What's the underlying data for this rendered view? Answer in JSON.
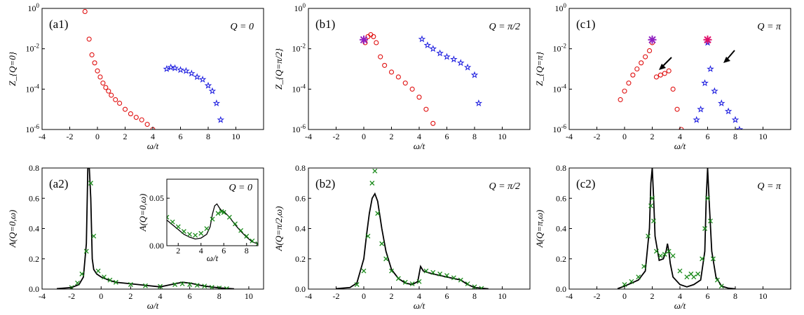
{
  "figure": {
    "panels": [
      {
        "id": "a1",
        "type": "scatter",
        "label": "(a1)",
        "q_label": "Q = 0",
        "ylabel": "Z_{Q=0}",
        "xlabel": "ω/t",
        "yscale": "log",
        "xlim": [
          -4,
          12
        ],
        "ylim": [
          1e-06,
          1
        ],
        "xticks": [
          -4,
          -2,
          0,
          2,
          4,
          6,
          8,
          10
        ],
        "yticks": [
          "10^-6",
          "10^-4",
          "10^-2",
          "10^0"
        ],
        "series": [
          {
            "marker": "circle",
            "color": "#e01010",
            "x": [
              -0.9,
              -0.6,
              -0.4,
              -0.2,
              0.0,
              0.2,
              0.4,
              0.6,
              0.8,
              1.0,
              1.3,
              1.6,
              2.0,
              2.4,
              2.8,
              3.2,
              3.6,
              4.0
            ],
            "y": [
              0.7,
              0.03,
              0.005,
              0.002,
              0.0008,
              0.0004,
              0.0002,
              0.00012,
              8e-05,
              5e-05,
              3e-05,
              2e-05,
              1e-05,
              6e-06,
              4e-06,
              3e-06,
              1.8e-06,
              1e-06
            ]
          },
          {
            "marker": "star",
            "color": "#1a1adf",
            "x": [
              5.0,
              5.3,
              5.6,
              6.0,
              6.4,
              6.8,
              7.2,
              7.6,
              8.0,
              8.3,
              8.6,
              8.9
            ],
            "y": [
              0.001,
              0.0012,
              0.0011,
              0.0009,
              0.0008,
              0.0006,
              0.0004,
              0.0003,
              0.00015,
              8e-05,
              2e-05,
              3e-06
            ]
          }
        ]
      },
      {
        "id": "b1",
        "type": "scatter",
        "label": "(b1)",
        "q_label": "Q = π/2",
        "ylabel": "Z_{Q=π/2}",
        "xlabel": "ω/t",
        "yscale": "log",
        "xlim": [
          -4,
          12
        ],
        "ylim": [
          1e-06,
          1
        ],
        "xticks": [
          -4,
          -2,
          0,
          2,
          4,
          6,
          8,
          10
        ],
        "yticks": [
          "10^-6",
          "10^-4",
          "10^-2",
          "10^0"
        ],
        "series": [
          {
            "marker": "circle",
            "color": "#e01010",
            "x": [
              0.1,
              0.3,
              0.5,
              0.7,
              0.9,
              1.2,
              1.5,
              2.0,
              2.5,
              3.0,
              3.5,
              4.0,
              4.5,
              5.0
            ],
            "y": [
              0.02,
              0.04,
              0.05,
              0.04,
              0.02,
              0.004,
              0.0015,
              0.0007,
              0.0004,
              0.0002,
              0.0001,
              4e-05,
              1e-05,
              2e-06
            ]
          },
          {
            "marker": "star",
            "color": "#1a1adf",
            "x": [
              4.2,
              4.6,
              5.0,
              5.5,
              6.0,
              6.5,
              7.0,
              7.5,
              8.0,
              8.3
            ],
            "y": [
              0.03,
              0.015,
              0.01,
              0.006,
              0.004,
              0.003,
              0.002,
              0.0012,
              0.0005,
              2e-05
            ]
          },
          {
            "marker": "asterisk",
            "color": "#9020c0",
            "x": [
              0.0
            ],
            "y": [
              0.028
            ]
          }
        ]
      },
      {
        "id": "c1",
        "type": "scatter",
        "label": "(c1)",
        "q_label": "Q = π",
        "ylabel": "Z_{Q=π}",
        "xlabel": "ω/t",
        "yscale": "log",
        "xlim": [
          -4,
          12
        ],
        "ylim": [
          1e-06,
          1
        ],
        "xticks": [
          -4,
          -2,
          0,
          2,
          4,
          6,
          8,
          10
        ],
        "yticks": [
          "10^-6",
          "10^-4",
          "10^-2",
          "10^0"
        ],
        "series": [
          {
            "marker": "circle",
            "color": "#e01010",
            "x": [
              -0.3,
              0.0,
              0.3,
              0.6,
              0.9,
              1.2,
              1.5,
              1.8,
              2.0,
              2.3,
              2.6,
              2.9,
              3.2,
              3.5,
              3.8,
              4.1
            ],
            "y": [
              3e-05,
              8e-05,
              0.0002,
              0.0005,
              0.001,
              0.002,
              0.004,
              0.008,
              0.02,
              0.0004,
              0.0005,
              0.0006,
              0.0008,
              0.0001,
              1e-05,
              1e-06
            ]
          },
          {
            "marker": "star",
            "color": "#1a1adf",
            "x": [
              5.2,
              5.5,
              5.8,
              6.0,
              6.2,
              6.5,
              7.0,
              7.5,
              8.0,
              8.3
            ],
            "y": [
              3e-06,
              1e-05,
              0.0002,
              0.02,
              0.001,
              8e-05,
              2e-05,
              8e-06,
              3e-06,
              1e-06
            ]
          },
          {
            "marker": "asterisk",
            "color": "#9020c0",
            "x": [
              2.0
            ],
            "y": [
              0.028
            ]
          },
          {
            "marker": "asterisk",
            "color": "#e0106a",
            "x": [
              6.0
            ],
            "y": [
              0.028
            ]
          }
        ]
      },
      {
        "id": "a2",
        "type": "line",
        "label": "(a2)",
        "q_label": "",
        "ylabel": "A(Q=0,ω)",
        "xlabel": "ω/t",
        "xlim": [
          -4,
          11
        ],
        "ylim": [
          0,
          0.8
        ],
        "xticks": [
          -4,
          -2,
          0,
          2,
          4,
          6,
          8,
          10
        ],
        "yticks": [
          "0.0",
          "0.2",
          "0.4",
          "0.6",
          "0.8"
        ],
        "series": [
          {
            "kind": "line",
            "color": "#000000",
            "x": [
              -3,
              -2,
              -1.5,
              -1.2,
              -1.0,
              -0.9,
              -0.8,
              -0.7,
              -0.6,
              -0.5,
              -0.3,
              0,
              0.5,
              1,
              2,
              3,
              4,
              5,
              5.5,
              6,
              7,
              8,
              9
            ],
            "y": [
              0.003,
              0.01,
              0.03,
              0.08,
              0.3,
              0.8,
              0.8,
              0.6,
              0.2,
              0.13,
              0.1,
              0.08,
              0.06,
              0.045,
              0.035,
              0.025,
              0.015,
              0.035,
              0.045,
              0.04,
              0.02,
              0.008,
              0.002
            ]
          },
          {
            "kind": "marker",
            "marker": "x",
            "color": "#1a8a1a",
            "x": [
              -2.0,
              -1.6,
              -1.3,
              -1.0,
              -0.7,
              -0.5,
              -0.2,
              0.2,
              0.6,
              1,
              2,
              3,
              4,
              5,
              5.5,
              6,
              6.5,
              7,
              7.5,
              8,
              8.5
            ],
            "y": [
              0.01,
              0.04,
              0.1,
              0.25,
              0.7,
              0.35,
              0.12,
              0.08,
              0.06,
              0.045,
              0.03,
              0.022,
              0.018,
              0.03,
              0.035,
              0.03,
              0.025,
              0.02,
              0.012,
              0.007,
              0.003
            ]
          }
        ],
        "inset": {
          "label": "Q = 0",
          "ylabel": "A(Q=0,ω)",
          "xlabel": "ω/t",
          "xlim": [
            1,
            9
          ],
          "ylim": [
            0,
            0.07
          ],
          "xticks": [
            2,
            4,
            6,
            8
          ],
          "yticks": [
            "0.00",
            "0.05"
          ],
          "series": [
            {
              "kind": "line",
              "color": "#000000",
              "x": [
                1,
                1.5,
                2,
                2.5,
                3,
                3.5,
                4,
                4.5,
                4.8,
                5,
                5.2,
                5.4,
                5.6,
                5.8,
                6,
                6.5,
                7,
                7.5,
                8,
                8.5,
                9
              ],
              "y": [
                0.027,
                0.022,
                0.017,
                0.012,
                0.009,
                0.007,
                0.008,
                0.012,
                0.02,
                0.033,
                0.042,
                0.044,
                0.04,
                0.037,
                0.036,
                0.03,
                0.022,
                0.015,
                0.009,
                0.004,
                0.002
              ]
            },
            {
              "kind": "marker",
              "marker": "x",
              "color": "#1a8a1a",
              "x": [
                1,
                1.5,
                2,
                2.5,
                3,
                3.5,
                4,
                4.5,
                5,
                5.5,
                5.8,
                6,
                6.5,
                7,
                7.5,
                8,
                8.5,
                9
              ],
              "y": [
                0.03,
                0.025,
                0.02,
                0.015,
                0.012,
                0.011,
                0.013,
                0.018,
                0.028,
                0.034,
                0.036,
                0.035,
                0.03,
                0.023,
                0.016,
                0.01,
                0.005,
                0.002
              ]
            }
          ]
        }
      },
      {
        "id": "b2",
        "type": "line",
        "label": "(b2)",
        "q_label": "Q = π/2",
        "ylabel": "A(Q=π/2,ω)",
        "xlabel": "ω/t",
        "xlim": [
          -4,
          12
        ],
        "ylim": [
          0,
          0.8
        ],
        "xticks": [
          -4,
          -2,
          0,
          2,
          4,
          6,
          8,
          10
        ],
        "yticks": [
          "0.0",
          "0.2",
          "0.4",
          "0.6",
          "0.8"
        ],
        "series": [
          {
            "kind": "line",
            "color": "#000000",
            "x": [
              -2,
              -1,
              -0.5,
              0,
              0.2,
              0.4,
              0.6,
              0.8,
              1.0,
              1.3,
              1.6,
              2,
              2.5,
              3,
              3.5,
              3.9,
              4.1,
              4.3,
              4.6,
              5,
              5.5,
              6,
              6.5,
              7,
              7.5,
              8,
              9
            ],
            "y": [
              0.003,
              0.01,
              0.04,
              0.2,
              0.36,
              0.5,
              0.6,
              0.63,
              0.58,
              0.4,
              0.25,
              0.13,
              0.07,
              0.04,
              0.03,
              0.05,
              0.15,
              0.12,
              0.11,
              0.1,
              0.09,
              0.08,
              0.07,
              0.06,
              0.03,
              0.01,
              0.002
            ]
          },
          {
            "kind": "marker",
            "marker": "x",
            "color": "#1a8a1a",
            "x": [
              -0.5,
              0,
              0.3,
              0.6,
              0.8,
              1.0,
              1.3,
              1.6,
              2,
              2.5,
              3,
              3.5,
              4,
              4.5,
              5,
              5.5,
              6,
              6.5,
              7,
              7.5,
              8,
              8.5
            ],
            "y": [
              0.03,
              0.12,
              0.35,
              0.7,
              0.78,
              0.5,
              0.3,
              0.2,
              0.12,
              0.07,
              0.045,
              0.035,
              0.05,
              0.12,
              0.11,
              0.1,
              0.09,
              0.075,
              0.06,
              0.035,
              0.015,
              0.005
            ]
          }
        ]
      },
      {
        "id": "c2",
        "type": "line",
        "label": "(c2)",
        "q_label": "Q = π",
        "ylabel": "A(Q=π,ω)",
        "xlabel": "ω/t",
        "xlim": [
          -4,
          12
        ],
        "ylim": [
          0,
          0.8
        ],
        "xticks": [
          -4,
          -2,
          0,
          2,
          4,
          6,
          8,
          10
        ],
        "yticks": [
          "0.0",
          "0.2",
          "0.4",
          "0.6",
          "0.8"
        ],
        "series": [
          {
            "kind": "line",
            "color": "#000000",
            "x": [
              -0.5,
              0,
              0.5,
              1,
              1.5,
              1.8,
              1.9,
              2.0,
              2.1,
              2.2,
              2.5,
              2.8,
              3.0,
              3.1,
              3.2,
              3.3,
              3.5,
              4,
              4.5,
              5,
              5.5,
              5.8,
              5.9,
              6.0,
              6.1,
              6.3,
              6.6,
              7,
              7.5,
              8
            ],
            "y": [
              0.003,
              0.02,
              0.04,
              0.06,
              0.12,
              0.4,
              0.7,
              0.8,
              0.6,
              0.35,
              0.19,
              0.2,
              0.25,
              0.3,
              0.25,
              0.17,
              0.08,
              0.03,
              0.015,
              0.03,
              0.06,
              0.25,
              0.6,
              0.8,
              0.6,
              0.25,
              0.08,
              0.02,
              0.006,
              0.002
            ]
          },
          {
            "kind": "marker",
            "marker": "x",
            "color": "#1a8a1a",
            "x": [
              0,
              0.5,
              1,
              1.4,
              1.7,
              1.9,
              2.0,
              2.1,
              2.3,
              2.6,
              2.9,
              3.2,
              3.5,
              4,
              4.5,
              4.8,
              5,
              5.3,
              5.6,
              5.8,
              6.0,
              6.2,
              6.4,
              6.7,
              7
            ],
            "y": [
              0.03,
              0.05,
              0.08,
              0.15,
              0.35,
              0.55,
              0.6,
              0.45,
              0.25,
              0.22,
              0.23,
              0.25,
              0.22,
              0.12,
              0.08,
              0.1,
              0.08,
              0.1,
              0.2,
              0.4,
              0.6,
              0.45,
              0.2,
              0.06,
              0.02
            ]
          }
        ]
      }
    ]
  }
}
